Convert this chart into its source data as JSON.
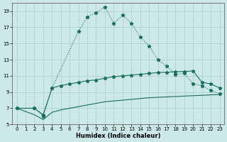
{
  "xlabel": "Humidex (Indice chaleur)",
  "bg_color": "#cce8e8",
  "grid_color": "#aacece",
  "line_color": "#1a6e5e",
  "xlim": [
    -0.5,
    23.5
  ],
  "ylim": [
    5,
    20
  ],
  "xticks": [
    0,
    1,
    2,
    3,
    4,
    5,
    6,
    7,
    8,
    9,
    10,
    11,
    12,
    13,
    14,
    15,
    16,
    17,
    18,
    19,
    20,
    21,
    22,
    23
  ],
  "yticks": [
    5,
    7,
    9,
    11,
    13,
    15,
    17,
    19
  ],
  "curve1_x": [
    0,
    2,
    3,
    4,
    7,
    8,
    9,
    10,
    11,
    12,
    13,
    14,
    15,
    16,
    17,
    18,
    19,
    20,
    21,
    22,
    23
  ],
  "curve1_y": [
    7,
    7,
    6,
    9.5,
    16.5,
    18.3,
    18.8,
    19.5,
    17.5,
    18.5,
    17.5,
    15.8,
    14.7,
    13.0,
    12.2,
    11.2,
    11.3,
    10.0,
    9.8,
    9.2,
    8.8
  ],
  "curve2_x": [
    0,
    2,
    3,
    4,
    5,
    6,
    7,
    8,
    9,
    10,
    11,
    12,
    13,
    14,
    15,
    16,
    17,
    18,
    19,
    20,
    21,
    22,
    23
  ],
  "curve2_y": [
    7,
    7,
    6.2,
    9.5,
    9.8,
    10.0,
    10.2,
    10.4,
    10.5,
    10.7,
    10.9,
    11.0,
    11.1,
    11.2,
    11.3,
    11.4,
    11.45,
    11.5,
    11.55,
    11.6,
    10.2,
    10.0,
    9.5
  ],
  "curve3_x": [
    0,
    2,
    3,
    4,
    5,
    6,
    7,
    8,
    9,
    10,
    11,
    12,
    13,
    14,
    15,
    16,
    17,
    18,
    19,
    20,
    21,
    22,
    23
  ],
  "curve3_y": [
    7,
    6.2,
    5.6,
    6.5,
    6.8,
    7.0,
    7.2,
    7.4,
    7.6,
    7.8,
    7.9,
    8.0,
    8.1,
    8.2,
    8.3,
    8.35,
    8.4,
    8.45,
    8.5,
    8.55,
    8.6,
    8.65,
    8.7
  ]
}
